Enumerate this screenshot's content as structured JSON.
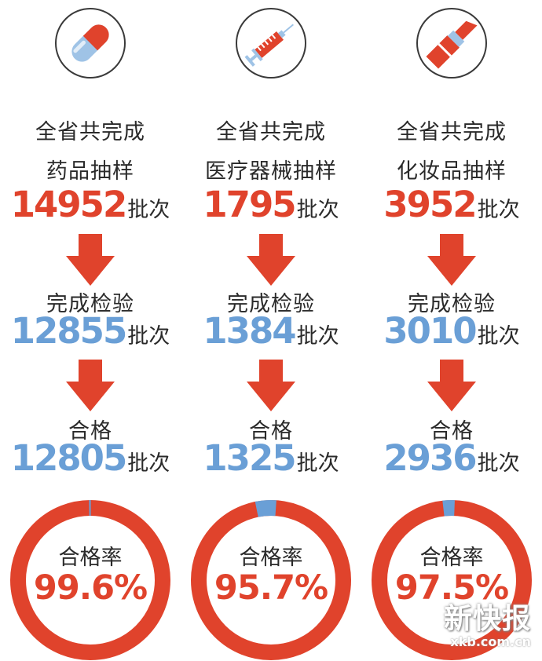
{
  "columns": [
    {
      "icon": "pill-icon",
      "title_line1": "全省共完成",
      "title_line2": "药品抽样",
      "sampled": "14952",
      "tested_label": "完成检验",
      "tested": "12855",
      "pass_label": "合格",
      "passed": "12805",
      "rate_label": "合格率",
      "rate": "99.6%",
      "rate_value": 99.6
    },
    {
      "icon": "syringe-icon",
      "title_line1": "全省共完成",
      "title_line2": "医疗器械抽样",
      "sampled": "1795",
      "tested_label": "完成检验",
      "tested": "1384",
      "pass_label": "合格",
      "passed": "1325",
      "rate_label": "合格率",
      "rate": "95.7%",
      "rate_value": 95.7
    },
    {
      "icon": "lipstick-icon",
      "title_line1": "全省共完成",
      "title_line2": "化妆品抽样",
      "sampled": "3952",
      "tested_label": "完成检验",
      "tested": "3010",
      "pass_label": "合格",
      "passed": "2936",
      "rate_label": "合格率",
      "rate": "97.5%",
      "rate_value": 97.5
    }
  ],
  "unit": "批次",
  "watermark": {
    "main": "新快报",
    "sub": "xkb.com.cn"
  },
  "colors": {
    "red": "#e0432c",
    "blue": "#6a9fd6",
    "text": "#2a2a2a"
  }
}
